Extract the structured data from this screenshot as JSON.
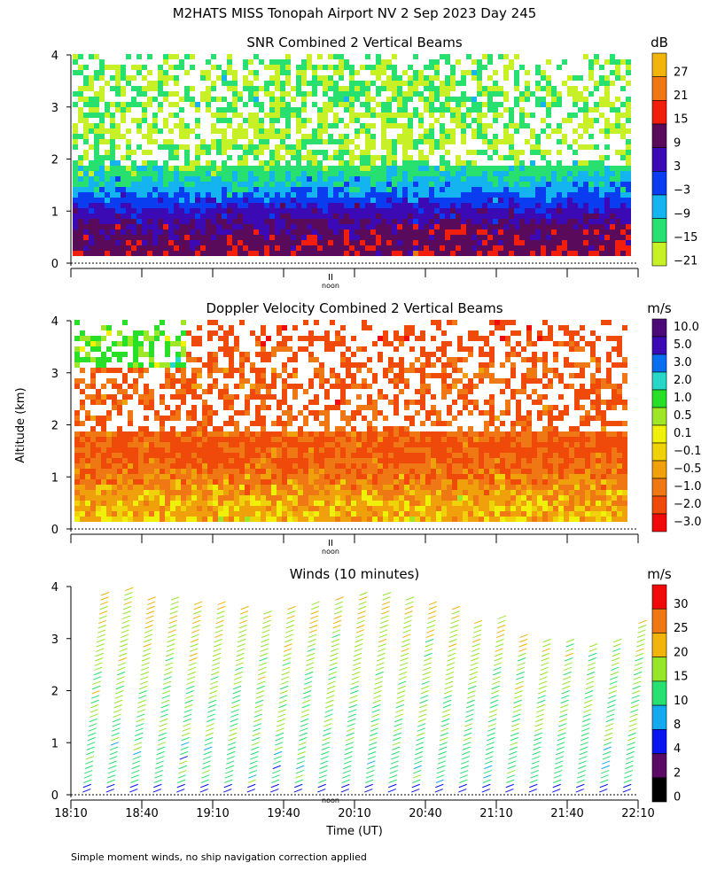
{
  "page": {
    "title": "M2HATS MISS Tonopah Airport NV   2 Sep 2023 Day 245",
    "ylabel": "Altitude (km)",
    "xlabel": "Time (UT)",
    "footnote": "Simple moment winds, no ship navigation correction applied",
    "noon_label": "noon",
    "noon_marker": "II"
  },
  "colors": {
    "white": "#ffffff",
    "black": "#000000",
    "snr_scale": [
      "#c8f026",
      "#28e070",
      "#14b4f0",
      "#0a3cf0",
      "#3c0ab4",
      "#5a0a5a",
      "#f01e0a",
      "#f07814",
      "#f0b40a"
    ],
    "vel_scale": [
      "#f00a0a",
      "#f04a0a",
      "#f07814",
      "#f0a00a",
      "#f0d20a",
      "#f0f00a",
      "#a0e628",
      "#28e028",
      "#28d7c8",
      "#0a6ef0",
      "#3c0ab4",
      "#4b0a78",
      "#2d0a32"
    ],
    "wind_scale": [
      "#000000",
      "#5a0a64",
      "#0a14f0",
      "#14aaf0",
      "#28e070",
      "#96e628",
      "#f0b40a",
      "#f07814",
      "#f00a0a"
    ]
  },
  "chart_data": [
    {
      "type": "heatmap",
      "title": "SNR Combined 2 Vertical Beams",
      "colorbar_unit": "dB",
      "colorbar_ticks": [
        "27",
        "21",
        "15",
        "9",
        "3",
        "−3",
        "−9",
        "−15",
        "−21"
      ],
      "colorbar_values": [
        27,
        21,
        15,
        9,
        3,
        -3,
        -9,
        -15,
        -21
      ],
      "y_ticks": [
        "0",
        "1",
        "2",
        "3",
        "4"
      ],
      "ylim": [
        0,
        4
      ],
      "x_range_ut": [
        "18:10",
        "22:10"
      ],
      "profile_db": [
        {
          "alt_km": 0.2,
          "value": 10
        },
        {
          "alt_km": 0.6,
          "value": 7
        },
        {
          "alt_km": 1.0,
          "value": 1
        },
        {
          "alt_km": 1.3,
          "value": -8
        },
        {
          "alt_km": 1.6,
          "value": -13
        },
        {
          "alt_km": 2.0,
          "value": -18
        },
        {
          "alt_km": 2.5,
          "value": -20
        },
        {
          "alt_km": 3.0,
          "value": -17
        },
        {
          "alt_km": 3.5,
          "value": -19
        },
        {
          "alt_km": 3.9,
          "value": -17
        }
      ]
    },
    {
      "type": "heatmap",
      "title": "Doppler Velocity Combined 2 Vertical Beams",
      "colorbar_unit": "m/s",
      "colorbar_ticks": [
        "10.0",
        "5.0",
        "3.0",
        "2.0",
        "1.0",
        "0.5",
        "0.1",
        "−0.1",
        "−0.5",
        "−1.0",
        "−2.0",
        "−3.0"
      ],
      "colorbar_values": [
        10.0,
        5.0,
        3.0,
        2.0,
        1.0,
        0.5,
        0.1,
        -0.1,
        -0.5,
        -1.0,
        -2.0,
        -3.0
      ],
      "y_ticks": [
        "0",
        "1",
        "2",
        "3",
        "4"
      ],
      "ylim": [
        0,
        4
      ],
      "x_range_ut": [
        "18:10",
        "22:10"
      ],
      "profile_ms": [
        {
          "alt_km": 0.2,
          "value": -0.1
        },
        {
          "alt_km": 0.6,
          "value": -0.3
        },
        {
          "alt_km": 1.0,
          "value": -0.8
        },
        {
          "alt_km": 1.4,
          "value": -1.2
        },
        {
          "alt_km": 1.8,
          "value": -1.0
        },
        {
          "alt_km": 2.3,
          "value": -1.2
        },
        {
          "alt_km": 3.0,
          "value": -1.0
        },
        {
          "alt_km": 3.6,
          "value": -1.5
        }
      ]
    },
    {
      "type": "scatter",
      "title": "Winds (10 minutes)",
      "colorbar_unit": "m/s",
      "colorbar_ticks": [
        "30",
        "25",
        "20",
        "15",
        "10",
        "8",
        "4",
        "2",
        "0"
      ],
      "colorbar_values": [
        30,
        25,
        20,
        15,
        10,
        8,
        4,
        2,
        0
      ],
      "y_ticks": [
        "0",
        "1",
        "2",
        "3",
        "4"
      ],
      "ylim": [
        0,
        4
      ],
      "x_ticks": [
        "18:10",
        "18:40",
        "19:10",
        "19:40",
        "20:10",
        "20:40",
        "21:10",
        "21:40",
        "22:10"
      ],
      "profile_times_ut": [
        "18:15",
        "18:25",
        "18:35",
        "18:45",
        "18:55",
        "19:05",
        "19:15",
        "19:25",
        "19:35",
        "19:45",
        "19:55",
        "20:05",
        "20:15",
        "20:25",
        "20:35",
        "20:45",
        "20:55",
        "21:05",
        "21:15",
        "21:25",
        "21:35",
        "21:45",
        "21:55",
        "22:05"
      ],
      "profile_top_km": [
        3.9,
        3.95,
        3.8,
        3.8,
        3.7,
        3.7,
        3.6,
        3.5,
        3.6,
        3.7,
        3.8,
        3.9,
        3.9,
        3.8,
        3.7,
        3.6,
        3.3,
        3.4,
        3.1,
        3.0,
        3.0,
        2.9,
        3.0,
        3.3
      ],
      "typical_speed_ms": [
        {
          "alt_km": 0.5,
          "value": 12
        },
        {
          "alt_km": 1.5,
          "value": 15
        },
        {
          "alt_km": 2.5,
          "value": 17
        },
        {
          "alt_km": 3.5,
          "value": 20
        }
      ]
    }
  ]
}
